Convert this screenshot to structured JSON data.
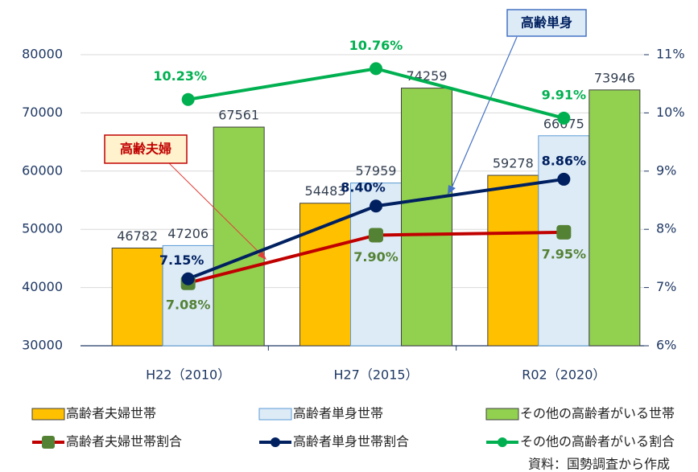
{
  "chart_data": {
    "type": "bar",
    "categories": [
      "H22（2010）",
      "H27（2015）",
      "R02（2020）"
    ],
    "series": [
      {
        "name": "高齢者夫婦世帯",
        "color": "#FFC000",
        "values": [
          46782,
          54483,
          59278
        ]
      },
      {
        "name": "高齢者単身世帯",
        "color": "#DDEBF7",
        "values": [
          47206,
          57959,
          66075
        ]
      },
      {
        "name": "その他の高齢者がいる世帯",
        "color": "#92D050",
        "values": [
          67561,
          74259,
          73946
        ]
      },
      {
        "name": "高齢者夫婦世帯割合",
        "type": "line",
        "axis": "y2",
        "color": "#C00000",
        "marker_color": "#548235",
        "label_color": "#548235",
        "values": [
          7.08,
          7.9,
          7.95
        ],
        "value_labels": [
          "7.08%",
          "7.90%",
          "7.95%"
        ]
      },
      {
        "name": "高齢者単身世帯割合",
        "type": "line",
        "axis": "y2",
        "color": "#002060",
        "marker_color": "#002060",
        "label_color": "#002060",
        "values": [
          7.15,
          8.4,
          8.86
        ],
        "value_labels": [
          "7.15%",
          "8.40%",
          "8.86%"
        ]
      },
      {
        "name": "その他の高齢者がいる割合",
        "type": "line",
        "axis": "y2",
        "color": "#00B050",
        "marker_color": "#00B050",
        "label_color": "#00B050",
        "values": [
          10.23,
          10.76,
          9.91
        ],
        "value_labels": [
          "10.23%",
          "10.76%",
          "9.91%"
        ]
      }
    ],
    "ylim": [
      30000,
      80000
    ],
    "yticks": [
      30000,
      40000,
      50000,
      60000,
      70000,
      80000
    ],
    "y2lim": [
      6,
      11
    ],
    "y2ticks": [
      {
        "value": 6,
        "label": "6%"
      },
      {
        "value": 7,
        "label": "7%"
      },
      {
        "value": 8,
        "label": "8%"
      },
      {
        "value": 9,
        "label": "9%"
      },
      {
        "value": 10,
        "label": "10%"
      },
      {
        "value": 11,
        "label": "11%"
      }
    ],
    "grid": true,
    "annotations": [
      {
        "text": "高齢単身"
      },
      {
        "text": "高齢夫婦"
      }
    ],
    "source": "資料：国勢調査から作成"
  }
}
